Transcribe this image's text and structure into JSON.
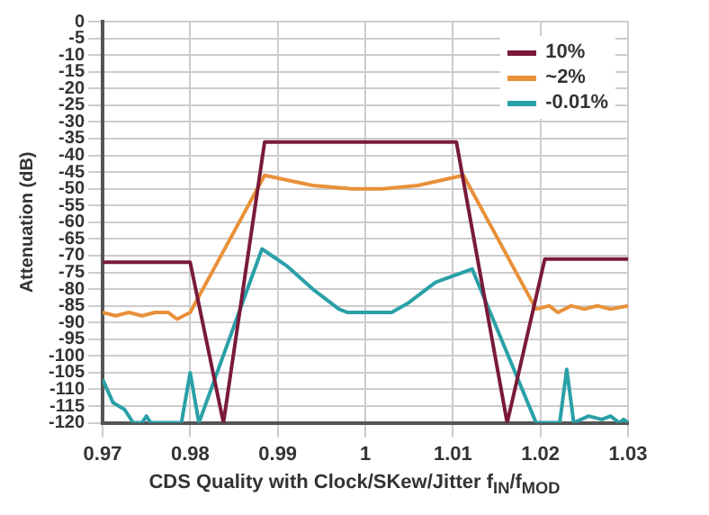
{
  "chart_data": {
    "type": "line",
    "xlabel": "CDS Quality with Clock/SKew/Jitter f$_{IN}$/f$_{MOD}$",
    "ylabel": "Attenuation (dB)",
    "xlim": [
      0.97,
      1.03
    ],
    "xticks": [
      0.97,
      0.98,
      0.99,
      1,
      1.01,
      1.02,
      1.03
    ],
    "ylim": [
      -120,
      0
    ],
    "yticks": [
      -120,
      -115,
      -110,
      -105,
      -100,
      -95,
      -90,
      -85,
      -80,
      -75,
      -70,
      -65,
      -60,
      -55,
      -50,
      -45,
      -40,
      -35,
      -30,
      -25,
      -20,
      -15,
      -10,
      -5,
      0
    ],
    "grid": true,
    "legend": "top right",
    "marker": "none",
    "line_style": "solid",
    "series": [
      {
        "name": "10%",
        "color": "#7a1a3a",
        "x": [
          0.97,
          0.98,
          0.9838,
          0.9885,
          1.0104,
          1.0162,
          1.0205,
          1.03
        ],
        "values": [
          -72,
          -72,
          -120,
          -36,
          -36,
          -120,
          -71,
          -71
        ]
      },
      {
        "name": "~2%",
        "color": "#e8913a",
        "x": [
          0.97,
          0.9715,
          0.973,
          0.9745,
          0.976,
          0.9775,
          0.9785,
          0.98,
          0.9885,
          0.994,
          0.9985,
          1.002,
          1.006,
          1.0112,
          1.0195,
          1.021,
          1.022,
          1.0235,
          1.025,
          1.0265,
          1.028,
          1.03
        ],
        "values": [
          -87,
          -88,
          -87,
          -88,
          -87,
          -87,
          -89,
          -87,
          -46,
          -49,
          -50,
          -50,
          -49,
          -46,
          -86,
          -85,
          -87,
          -85,
          -86,
          -85,
          -86,
          -85
        ]
      },
      {
        "name": "-0.01%",
        "color": "#2aa0a8",
        "x": [
          0.97,
          0.9712,
          0.9725,
          0.9735,
          0.9745,
          0.975,
          0.9755,
          0.979,
          0.98,
          0.981,
          0.9882,
          0.991,
          0.994,
          0.997,
          0.998,
          1.003,
          1.005,
          1.008,
          1.0122,
          1.0195,
          1.0222,
          1.023,
          1.0238,
          1.0255,
          1.027,
          1.028,
          1.029,
          1.0295,
          1.03
        ],
        "values": [
          -107,
          -114,
          -116,
          -120,
          -120,
          -118,
          -120,
          -120,
          -105,
          -120,
          -68,
          -73,
          -80,
          -86,
          -87,
          -87,
          -84,
          -78,
          -74,
          -120,
          -120,
          -104,
          -120,
          -118,
          -119,
          -118,
          -120,
          -119,
          -120
        ]
      }
    ]
  }
}
